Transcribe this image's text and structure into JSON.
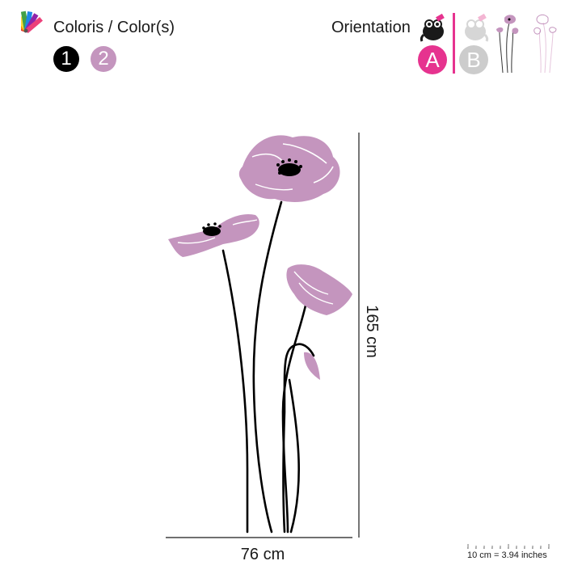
{
  "colors": {
    "title": "Coloris / Color(s)",
    "swatches": [
      {
        "number": "1",
        "color": "#000000"
      },
      {
        "number": "2",
        "color": "#c495be"
      }
    ]
  },
  "orientation": {
    "title": "Orientation",
    "options": [
      {
        "letter": "A",
        "color": "#e6338f",
        "state": "selected"
      },
      {
        "letter": "B",
        "color": "#cccccc",
        "state": "unselected"
      }
    ],
    "accent_color": "#e6338f"
  },
  "product": {
    "petal_color": "#c495be",
    "stem_color": "#000000",
    "width_label": "76 cm",
    "height_label": "165 cm"
  },
  "scale": {
    "label": "10 cm = 3.94 inches"
  },
  "icons": {
    "palette": "color-palette-icon",
    "mascot": "mascot-icon"
  }
}
